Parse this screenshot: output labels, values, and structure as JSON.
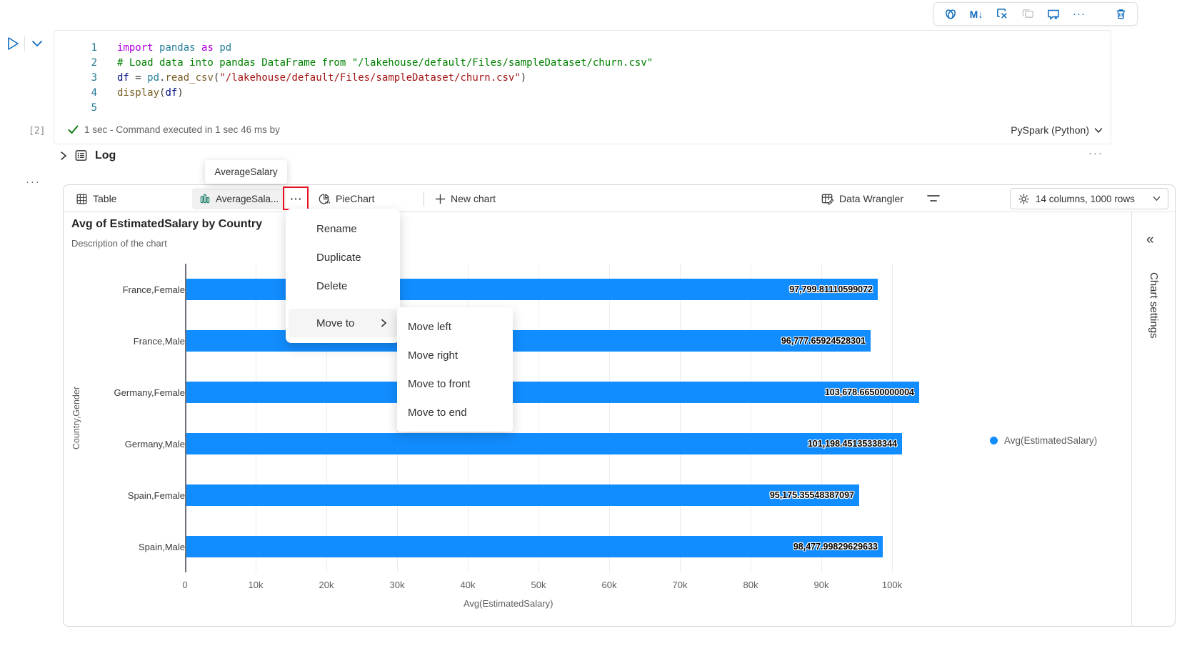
{
  "toolbar": {
    "markdown_label": "M↓",
    "more_label": "···"
  },
  "cell": {
    "line_numbers": [
      "1",
      "2",
      "3",
      "4",
      "5"
    ],
    "code_lines": [
      [
        {
          "t": "import ",
          "s": "kw"
        },
        {
          "t": "pandas ",
          "s": "ns"
        },
        {
          "t": "as ",
          "s": "kw"
        },
        {
          "t": "pd",
          "s": "ns"
        }
      ],
      [
        {
          "t": "# Load data into pandas DataFrame from \"/lakehouse/default/Files/sampleDataset/churn.csv\"",
          "s": "com"
        }
      ],
      [
        {
          "t": "df ",
          "s": "var"
        },
        {
          "t": "= ",
          "s": "pl"
        },
        {
          "t": "pd",
          "s": "ns"
        },
        {
          "t": ".",
          "s": "pl"
        },
        {
          "t": "read_csv",
          "s": "fn"
        },
        {
          "t": "(",
          "s": "pl"
        },
        {
          "t": "\"/lakehouse/default/Files/sampleDataset/churn.csv\"",
          "s": "str"
        },
        {
          "t": ")",
          "s": "pl"
        }
      ],
      [
        {
          "t": "display",
          "s": "fn"
        },
        {
          "t": "(",
          "s": "pl"
        },
        {
          "t": "df",
          "s": "var"
        },
        {
          "t": ")",
          "s": "pl"
        }
      ],
      []
    ],
    "execution_count": "[2]",
    "status_text": "1 sec - Command executed in 1 sec 46 ms by",
    "kernel": "PySpark (Python)",
    "margin_more": "···"
  },
  "log": {
    "label": "Log",
    "more": "···"
  },
  "tooltip": {
    "text": "AverageSalary"
  },
  "tabs": {
    "table": "Table",
    "active_chart": "AverageSala...",
    "more": "···",
    "pie": "PieChart",
    "new_chart": "New chart",
    "data_wrangler": "Data Wrangler",
    "columns_rows": "14 columns, 1000 rows"
  },
  "context_menu": {
    "items": [
      "Rename",
      "Duplicate",
      "Delete"
    ],
    "move_to": "Move to",
    "submenu": [
      "Move left",
      "Move right",
      "Move to front",
      "Move to end"
    ]
  },
  "chart_settings": {
    "label": "Chart settings"
  },
  "chart_data": {
    "type": "bar",
    "orientation": "horizontal",
    "title": "Avg of EstimatedSalary by Country",
    "subtitle": "Description of the chart",
    "categories": [
      "France,Female",
      "France,Male",
      "Germany,Female",
      "Germany,Male",
      "Spain,Female",
      "Spain,Male"
    ],
    "values": [
      97799.81110599072,
      96777.65924528301,
      103678.66500000004,
      101198.45135338344,
      95175.35548387097,
      98477.99829629633
    ],
    "value_labels": [
      "97,799.81110599072",
      "96,777.65924528301",
      "103,678.66500000004",
      "101,198.45135338344",
      "95,175.35548387097",
      "98,477.99829629633"
    ],
    "x_ticks": [
      "0",
      "10k",
      "20k",
      "30k",
      "40k",
      "50k",
      "60k",
      "70k",
      "80k",
      "90k",
      "100k"
    ],
    "xlim": [
      0,
      110000
    ],
    "xlabel": "Avg(EstimatedSalary)",
    "ylabel": "Country,Gender",
    "legend": [
      "Avg(EstimatedSalary)"
    ],
    "legend_position": "right",
    "grid": true,
    "bar_color": "#118DFF"
  }
}
